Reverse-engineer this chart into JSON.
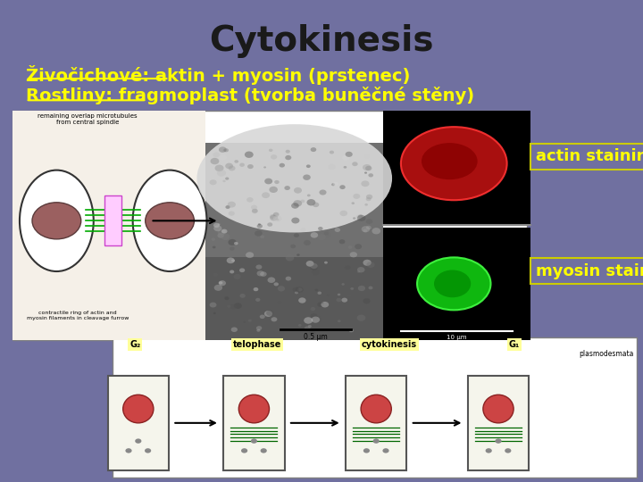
{
  "background_color": "#7070a0",
  "title": "Cytokinesis",
  "title_fontsize": 28,
  "title_color": "#1a1a1a",
  "title_bold": true,
  "line1_prefix": "Živočichové:",
  "line1_rest": " aktin + myosin (prstenec)",
  "line2_prefix": "Rostliny:",
  "line2_rest": " fragmoplast (tvorba buněčné stěny)",
  "text_color_yellow": "#ffff00",
  "text_fontsize": 14,
  "label_actin": "actin staining",
  "label_myosin": "myosin staining",
  "label_fontsize": 13,
  "label_color": "#ffff00",
  "label_box_edge": "#cccc00"
}
